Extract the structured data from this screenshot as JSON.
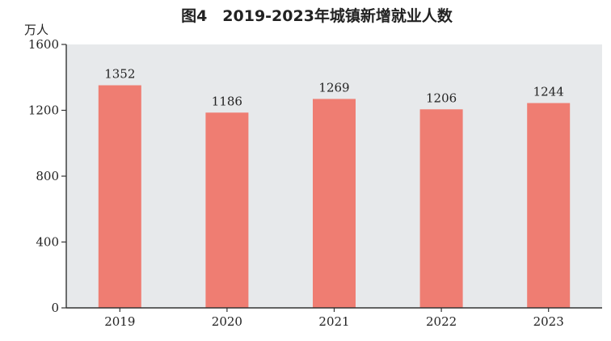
{
  "chart_data": {
    "type": "bar",
    "title": "图4　2019-2023年城镇新增就业人数",
    "ylabel": "万人",
    "xlabel": "",
    "categories": [
      "2019",
      "2020",
      "2021",
      "2022",
      "2023"
    ],
    "values": [
      1352,
      1186,
      1269,
      1206,
      1244
    ],
    "data_labels": [
      "1352",
      "1186",
      "1269",
      "1206",
      "1244"
    ],
    "ylim": [
      0,
      1600
    ],
    "yticks": [
      0,
      400,
      800,
      1200,
      1600
    ],
    "ytick_labels": [
      "0",
      "400",
      "800",
      "1200",
      "1600"
    ],
    "grid": false,
    "legend": "none"
  },
  "colors": {
    "bar": "#ef7d72",
    "plot_background": "#e7e9eb",
    "axis": "#333333",
    "text": "#222222"
  }
}
